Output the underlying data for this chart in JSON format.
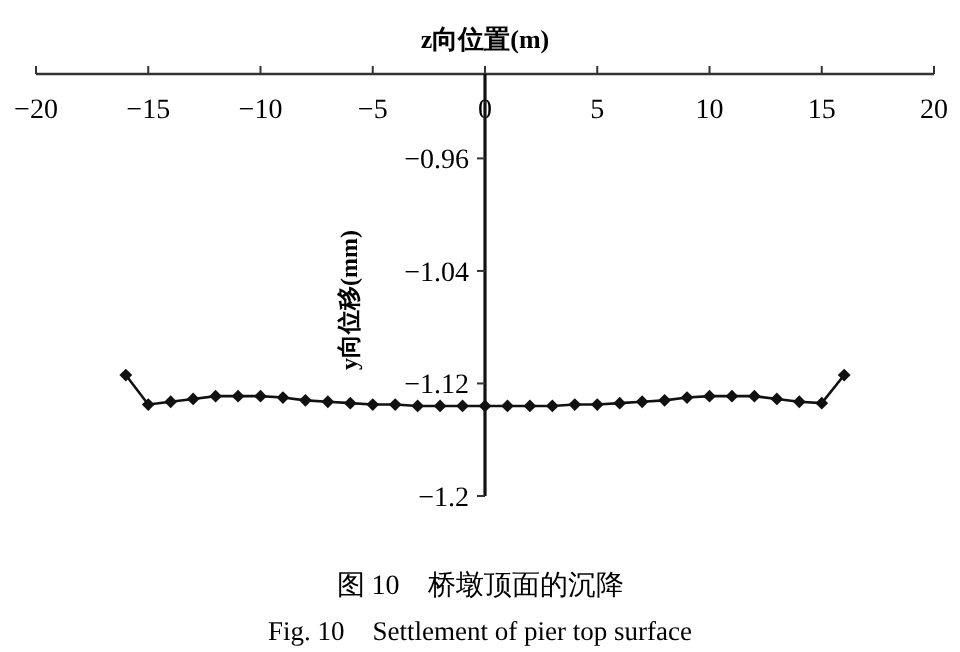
{
  "chart_data": {
    "type": "line",
    "title": "图 10　桥墩顶面的沉降",
    "subtitle": "Fig. 10　Settlement of pier top surface",
    "xlabel": "z向位置(m)",
    "ylabel": "y向位移(mm)",
    "x": [
      -16,
      -15,
      -14,
      -13,
      -12,
      -11,
      -10,
      -9,
      -8,
      -7,
      -6,
      -5,
      -4,
      -3,
      -2,
      -1,
      0,
      1,
      2,
      3,
      4,
      5,
      6,
      7,
      8,
      9,
      10,
      11,
      12,
      13,
      14,
      15,
      16
    ],
    "series": [
      {
        "color": "#111111",
        "values": [
          -1.114,
          -1.135,
          -1.133,
          -1.131,
          -1.129,
          -1.129,
          -1.129,
          -1.13,
          -1.132,
          -1.133,
          -1.134,
          -1.135,
          -1.135,
          -1.136,
          -1.136,
          -1.136,
          -1.136,
          -1.136,
          -1.136,
          -1.136,
          -1.135,
          -1.135,
          -1.134,
          -1.133,
          -1.132,
          -1.13,
          -1.129,
          -1.129,
          -1.129,
          -1.131,
          -1.133,
          -1.134,
          -1.114
        ]
      }
    ],
    "xlim": [
      -20,
      20
    ],
    "xticks": [
      -20,
      -15,
      -10,
      -5,
      0,
      5,
      10,
      15,
      20
    ],
    "ylim": [
      -1.2,
      -0.9
    ],
    "yticks": [
      -0.96,
      -1.04,
      -1.12,
      -1.2
    ],
    "marker": "diamond",
    "line_style": "solid"
  }
}
